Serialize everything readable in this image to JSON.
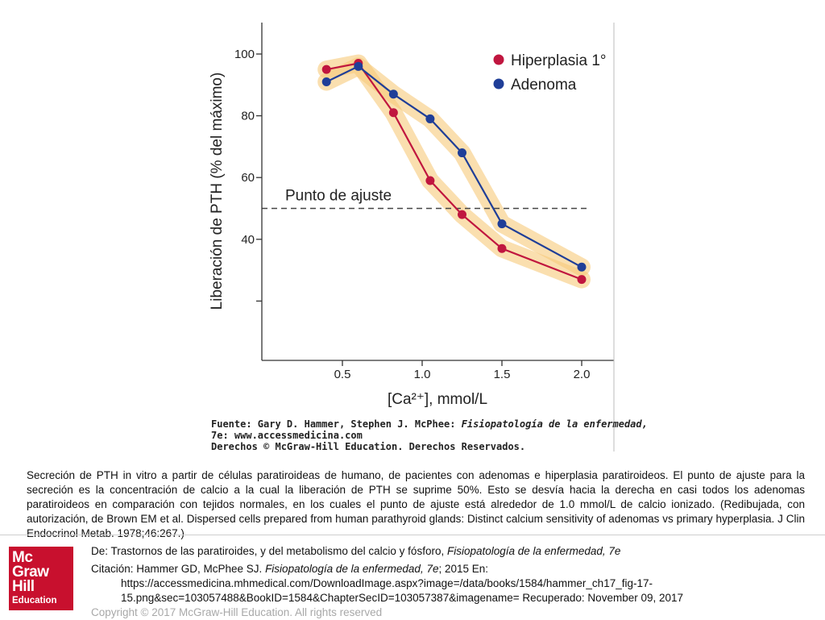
{
  "chart_data": {
    "type": "line",
    "xlabel": "[Ca²⁺], mmol/L",
    "ylabel": "Liberación de PTH (% del máximo)",
    "xlim": [
      0.0,
      2.2
    ],
    "ylim": [
      0,
      110
    ],
    "xticks": [
      0.5,
      1.0,
      1.5,
      2.0
    ],
    "xtick_labels": [
      "0.5",
      "1.0",
      "1.5",
      "2.0"
    ],
    "yticks": [
      20,
      40,
      60,
      80,
      100
    ],
    "ytick_labels": [
      "",
      "40",
      "60",
      "80",
      "100"
    ],
    "grid": false,
    "legend_position": "top-right",
    "series": [
      {
        "name": "Hiperplasia 1°",
        "color": "#c0163f",
        "band_color": "#f7c97a",
        "x": [
          0.4,
          0.6,
          0.82,
          1.05,
          1.25,
          1.5,
          2.0
        ],
        "y": [
          95,
          97,
          81,
          59,
          48,
          37,
          27
        ]
      },
      {
        "name": "Adenoma",
        "color": "#1f3e98",
        "band_color": "#f7c97a",
        "x": [
          0.4,
          0.6,
          0.82,
          1.05,
          1.25,
          1.5,
          2.0
        ],
        "y": [
          91,
          96,
          87,
          79,
          68,
          45,
          31
        ]
      }
    ],
    "reference_line": {
      "y": 50,
      "style": "dashed",
      "label": "Punto de ajuste"
    },
    "source_lines": [
      {
        "normal": "Fuente: Gary D. Hammer, Stephen J. McPhee: ",
        "italic": "Fisiopatología de la enfermedad,"
      },
      {
        "normal": "7e: www.accessmedicina.com",
        "italic": ""
      },
      {
        "normal": "Derechos © McGraw-Hill Education. Derechos Reservados.",
        "italic": ""
      }
    ]
  },
  "caption": "Secreción de PTH in vitro a partir de células paratiroideas de humano, de pacientes con adenomas e hiperplasia paratiroideos. El punto de ajuste para la secreción es la concentración de calcio a la cual la liberación de PTH se suprime 50%. Esto se desvía hacia la derecha en casi todos los adenomas paratiroideos en comparación con tejidos normales, en los cuales el punto de ajuste está alrededor de 1.0 mmol/L de calcio ionizado. (Redibujada, con autorización, de Brown EM et al. Dispersed cells prepared from human parathyroid glands: Distinct calcium sensitivity of adenomas vs primary hyperplasia. J Clin Endocrinol Metab. 1978;46:267.)",
  "logo": {
    "line1": "Mc",
    "line2": "Graw",
    "line3": "Hill",
    "line4": "Education",
    "color": "#c8102e"
  },
  "citation": {
    "from_prefix": "De: Trastornos de las paratiroides, y del metabolismo del calcio y fósforo, ",
    "from_book": "Fisiopatología de la enfermedad, 7e",
    "cite_prefix": "Citación: Hammer GD, McPhee SJ. ",
    "cite_book": "Fisiopatología de la enfermedad, 7e",
    "cite_suffix": "; 2015 En:",
    "url_line1": "https://accessmedicina.mhmedical.com/DownloadImage.aspx?image=/data/books/1584/hammer_ch17_fig-17-",
    "url_line2": "15.png&sec=103057488&BookID=1584&ChapterSecID=103057387&imagename= Recuperado: November 09, 2017",
    "copyright": "Copyright © 2017 McGraw-Hill Education. All rights reserved"
  }
}
